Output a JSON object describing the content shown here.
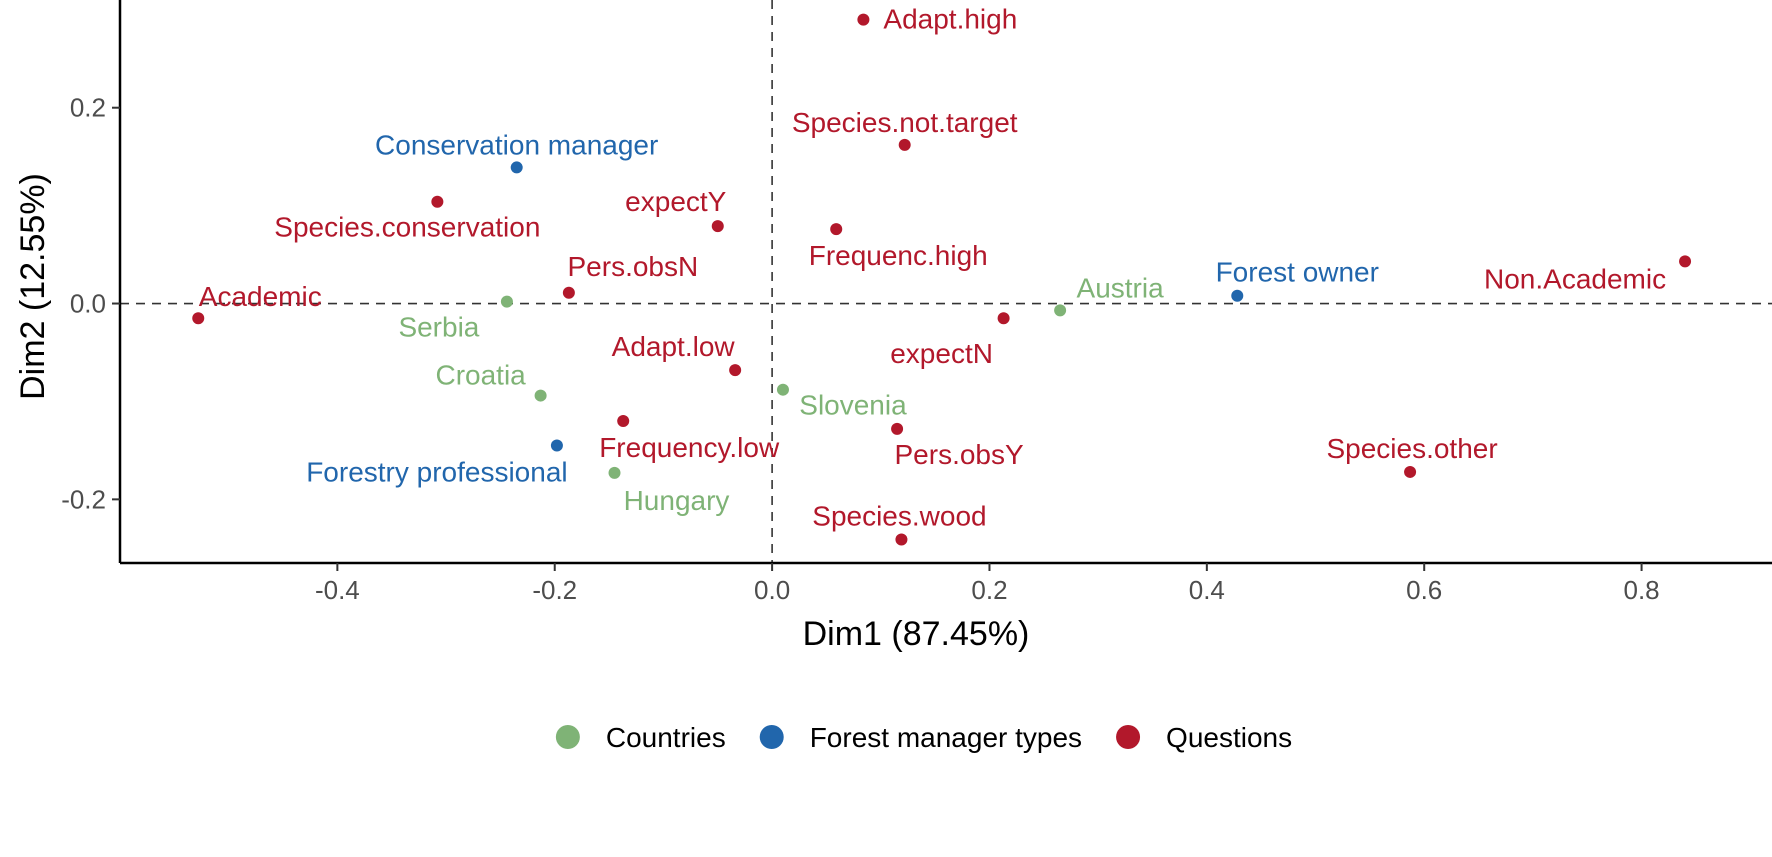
{
  "chart_data": {
    "type": "scatter",
    "title": "",
    "xlabel": "Dim1 (87.45%)",
    "ylabel": "Dim2 (12.55%)",
    "xlim": [
      -0.6,
      0.92
    ],
    "ylim": [
      -0.265,
      0.31
    ],
    "xticks": [
      -0.4,
      -0.2,
      0.0,
      0.2,
      0.4,
      0.6,
      0.8
    ],
    "xtick_labels": [
      "-0.4",
      "-0.2",
      "0.0",
      "0.2",
      "0.4",
      "0.6",
      "0.8"
    ],
    "yticks": [
      -0.2,
      0.0,
      0.2
    ],
    "ytick_labels": [
      "-0.2",
      "0.0",
      "0.2"
    ],
    "reference_lines": {
      "x": 0,
      "y": 0,
      "style": "dashed"
    },
    "grid": false,
    "legend_position": "bottom",
    "groups": [
      {
        "name": "Countries",
        "color": "#7fb376"
      },
      {
        "name": "Forest manager types",
        "color": "#2166ac"
      },
      {
        "name": "Questions",
        "color": "#b2182b"
      }
    ],
    "points": [
      {
        "label": "Adapt.high",
        "group": "Questions",
        "x": 0.084,
        "y": 0.29
      },
      {
        "label": "Species.not.target",
        "group": "Questions",
        "x": 0.122,
        "y": 0.162
      },
      {
        "label": "Conservation manager",
        "group": "Forest manager types",
        "x": -0.235,
        "y": 0.139
      },
      {
        "label": "Species.conservation",
        "group": "Questions",
        "x": -0.308,
        "y": 0.104
      },
      {
        "label": "expectY",
        "group": "Questions",
        "x": -0.05,
        "y": 0.079
      },
      {
        "label": "Frequenc.high",
        "group": "Questions",
        "x": 0.059,
        "y": 0.076
      },
      {
        "label": "Pers.obsN",
        "group": "Questions",
        "x": -0.187,
        "y": 0.011
      },
      {
        "label": "Academic",
        "group": "Questions",
        "x": -0.528,
        "y": -0.015
      },
      {
        "label": "Serbia",
        "group": "Countries",
        "x": -0.244,
        "y": 0.002
      },
      {
        "label": "Austria",
        "group": "Countries",
        "x": 0.265,
        "y": -0.007
      },
      {
        "label": "Forest owner",
        "group": "Forest manager types",
        "x": 0.428,
        "y": 0.008
      },
      {
        "label": "Non.Academic",
        "group": "Questions",
        "x": 0.84,
        "y": 0.043
      },
      {
        "label": "expectN",
        "group": "Questions",
        "x": 0.213,
        "y": -0.015
      },
      {
        "label": "Adapt.low",
        "group": "Questions",
        "x": -0.034,
        "y": -0.068
      },
      {
        "label": "Croatia",
        "group": "Countries",
        "x": -0.213,
        "y": -0.094
      },
      {
        "label": "Slovenia",
        "group": "Countries",
        "x": 0.01,
        "y": -0.088
      },
      {
        "label": "Frequency.low",
        "group": "Questions",
        "x": -0.137,
        "y": -0.12
      },
      {
        "label": "Pers.obsY",
        "group": "Questions",
        "x": 0.115,
        "y": -0.128
      },
      {
        "label": "Forestry professional",
        "group": "Forest manager types",
        "x": -0.198,
        "y": -0.145
      },
      {
        "label": "Hungary",
        "group": "Countries",
        "x": -0.145,
        "y": -0.173
      },
      {
        "label": "Species.other",
        "group": "Questions",
        "x": 0.587,
        "y": -0.172
      },
      {
        "label": "Species.wood",
        "group": "Questions",
        "x": 0.119,
        "y": -0.241
      }
    ]
  }
}
